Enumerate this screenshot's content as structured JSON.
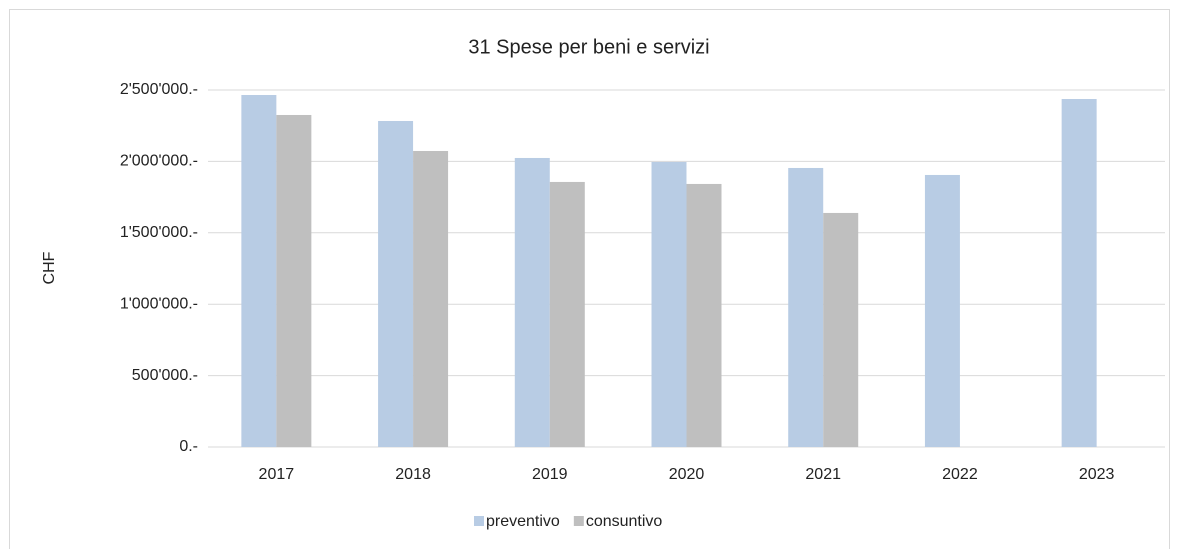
{
  "chart_data": {
    "type": "bar",
    "title": "31 Spese per beni e servizi",
    "y_label": "CHF",
    "categories": [
      "2017",
      "2018",
      "2019",
      "2020",
      "2021",
      "2022",
      "2023"
    ],
    "series": [
      {
        "name": "preventivo",
        "color": "#b8cce4",
        "values": [
          2465000,
          2283000,
          2024000,
          1996000,
          1954000,
          1905000,
          2437000
        ]
      },
      {
        "name": "consuntivo",
        "color": "#bfbfbf",
        "values": [
          2325000,
          2073000,
          1856000,
          1842000,
          1639000,
          null,
          null
        ]
      }
    ],
    "ylim": [
      0,
      2500000
    ],
    "yticks": [
      {
        "value": 0,
        "label": "0.-"
      },
      {
        "value": 500000,
        "label": "500'000.-"
      },
      {
        "value": 1000000,
        "label": "1'000'000.-"
      },
      {
        "value": 1500000,
        "label": "1'500'000.-"
      },
      {
        "value": 2000000,
        "label": "2'000'000.-"
      },
      {
        "value": 2500000,
        "label": "2'500'000.-"
      }
    ],
    "grid": true,
    "legend": "bottom"
  }
}
